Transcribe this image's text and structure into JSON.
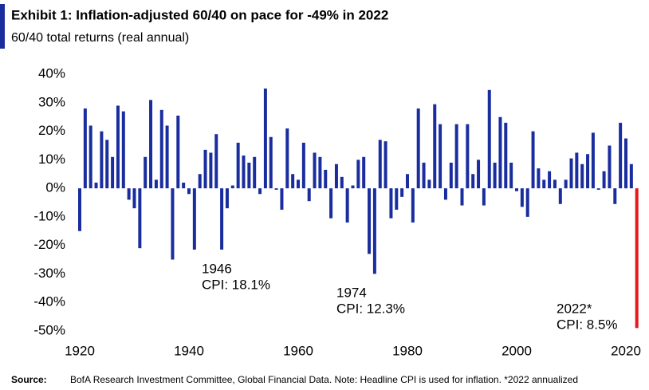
{
  "chart_data": {
    "type": "bar",
    "title": "Exhibit 1: Inflation-adjusted 60/40 on pace for -49% in 2022",
    "subtitle": "60/40 total returns (real annual)",
    "source_label": "Source:",
    "source": "BofA Research Investment Committee, Global Financial Data. Note: Headline CPI is used  for inflation. *2022 annualized",
    "x": [
      1920,
      1921,
      1922,
      1923,
      1924,
      1925,
      1926,
      1927,
      1928,
      1929,
      1930,
      1931,
      1932,
      1933,
      1934,
      1935,
      1936,
      1937,
      1938,
      1939,
      1940,
      1941,
      1942,
      1943,
      1944,
      1945,
      1946,
      1947,
      1948,
      1949,
      1950,
      1951,
      1952,
      1953,
      1954,
      1955,
      1956,
      1957,
      1958,
      1959,
      1960,
      1961,
      1962,
      1963,
      1964,
      1965,
      1966,
      1967,
      1968,
      1969,
      1970,
      1971,
      1972,
      1973,
      1974,
      1975,
      1976,
      1977,
      1978,
      1979,
      1980,
      1981,
      1982,
      1983,
      1984,
      1985,
      1986,
      1987,
      1988,
      1989,
      1990,
      1991,
      1992,
      1993,
      1994,
      1995,
      1996,
      1997,
      1998,
      1999,
      2000,
      2001,
      2002,
      2003,
      2004,
      2005,
      2006,
      2007,
      2008,
      2009,
      2010,
      2011,
      2012,
      2013,
      2014,
      2015,
      2016,
      2017,
      2018,
      2019,
      2020,
      2021,
      2022
    ],
    "values": [
      -15,
      28,
      22,
      2,
      20,
      17,
      11,
      29,
      27,
      -4,
      -7,
      -21,
      11,
      31,
      3,
      27.5,
      22,
      -25,
      25.5,
      2,
      -2,
      -21.5,
      5,
      13.5,
      12.5,
      19,
      -21.5,
      -7,
      1,
      16,
      11.5,
      9,
      11,
      -2,
      35,
      18,
      -0.5,
      -7.5,
      21,
      5,
      3,
      16,
      -4.5,
      12.5,
      11,
      6.5,
      -10.5,
      8.5,
      4,
      -12,
      1,
      10,
      11,
      -23,
      -30,
      17,
      16.5,
      -10.5,
      -7.5,
      -3,
      5,
      -12,
      28,
      9,
      3,
      29.5,
      22.5,
      -4,
      9,
      22.5,
      -6,
      22.5,
      5,
      10,
      -6,
      34.5,
      9,
      25,
      23,
      9,
      -1,
      -6.5,
      -10,
      20,
      7,
      3,
      6,
      3,
      -5.5,
      3,
      10.5,
      12.5,
      8.5,
      12,
      19.5,
      -0.5,
      6,
      15,
      -5.5,
      23,
      17.5,
      8.5,
      -49
    ],
    "color": "#1a2d9e",
    "last_color": "#e3191e",
    "ylim": [
      -52,
      42
    ],
    "yticks": [
      {
        "value": 40,
        "label": "40%"
      },
      {
        "value": 30,
        "label": "30%"
      },
      {
        "value": 20,
        "label": "20%"
      },
      {
        "value": 10,
        "label": "10%"
      },
      {
        "value": 0,
        "label": "0%"
      },
      {
        "value": -10,
        "label": "-10%"
      },
      {
        "value": -20,
        "label": "-20%"
      },
      {
        "value": -30,
        "label": "-30%"
      },
      {
        "value": -40,
        "label": "-40%"
      },
      {
        "value": -50,
        "label": "-50%"
      }
    ],
    "xlim": [
      1918,
      2024
    ],
    "xticks": [
      1920,
      1940,
      1960,
      1980,
      2000,
      2020
    ],
    "annotations": [
      [
        "1946",
        "CPI: 18.1%"
      ],
      [
        "1974",
        "CPI: 12.3%"
      ],
      [
        "2022*",
        "CPI: 8.5%"
      ]
    ]
  }
}
